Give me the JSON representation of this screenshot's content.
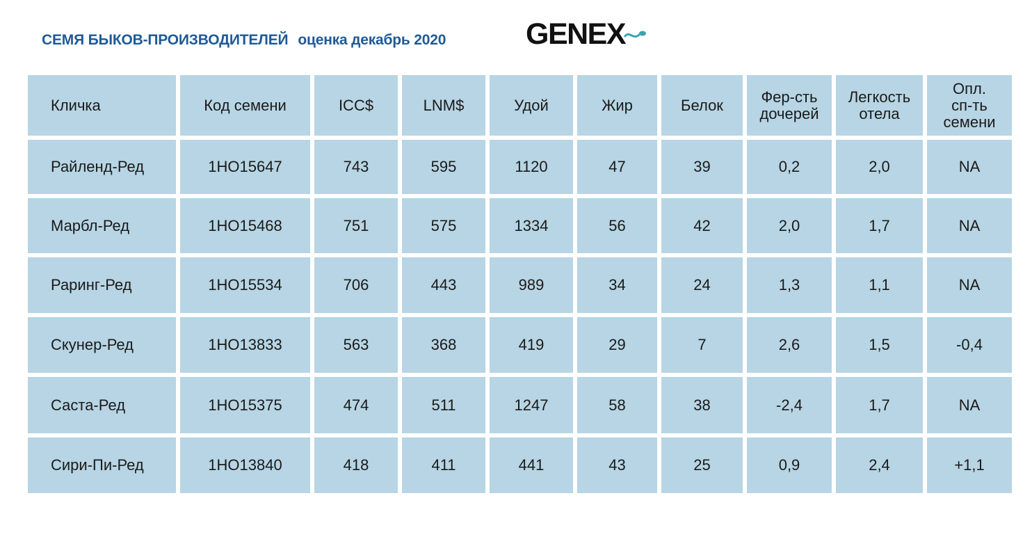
{
  "title": {
    "main": "СЕМЯ БЫКОВ-ПРОИЗВОДИТЕЛЕЙ",
    "sub": "оценка декабрь 2020"
  },
  "logo": {
    "text": "GENEX",
    "icon": "sperm-swoosh-icon",
    "accent_color": "#3aa3b0"
  },
  "colors": {
    "title": "#1f5a96",
    "cell_background": "#b7d5e4"
  },
  "table": {
    "headers": [
      "Кличка",
      "Код семени",
      "ICC$",
      "LNM$",
      "Удой",
      "Жир",
      "Белок",
      "Фер-сть\nдочерей",
      "Легкость\nотела",
      "Опл.\nсп-ть\nсемени"
    ],
    "rows": [
      [
        "Райленд-Ред",
        "1HO15647",
        "743",
        "595",
        "1120",
        "47",
        "39",
        "0,2",
        "2,0",
        "NA"
      ],
      [
        "Марбл-Ред",
        "1HO15468",
        "751",
        "575",
        "1334",
        "56",
        "42",
        "2,0",
        "1,7",
        "NA"
      ],
      [
        "Раринг-Ред",
        "1HO15534",
        "706",
        "443",
        "989",
        "34",
        "24",
        "1,3",
        "1,1",
        "NA"
      ],
      [
        "Скунер-Ред",
        "1HO13833",
        "563",
        "368",
        "419",
        "29",
        "7",
        "2,6",
        "1,5",
        "-0,4"
      ],
      [
        "Саста-Ред",
        "1HO15375",
        "474",
        "511",
        "1247",
        "58",
        "38",
        "-2,4",
        "1,7",
        "NA"
      ],
      [
        "Сири-Пи-Ред",
        "1HO13840",
        "418",
        "411",
        "441",
        "43",
        "25",
        "0,9",
        "2,4",
        "+1,1"
      ]
    ]
  }
}
